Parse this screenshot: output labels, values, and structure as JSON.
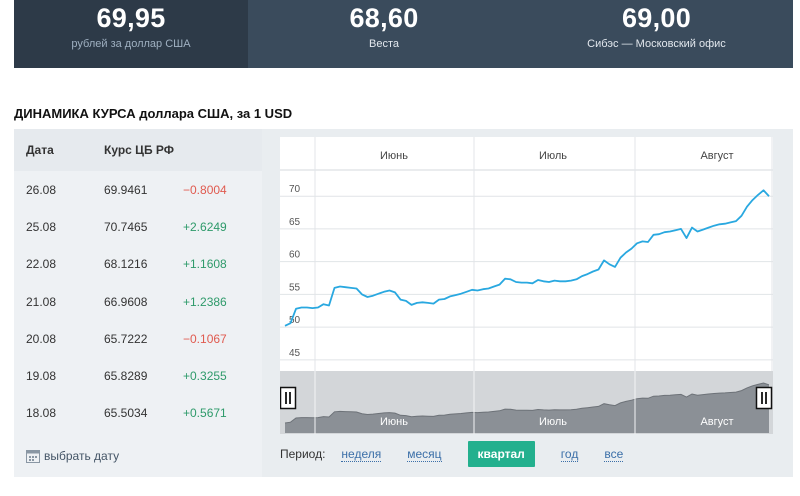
{
  "rates": [
    {
      "value": "69,95",
      "label": "рублей за доллар США"
    },
    {
      "value": "68,60",
      "label": "Веста"
    },
    {
      "value": "69,00",
      "label": "Сибэс — Московский офис"
    }
  ],
  "section_title": "ДИНАМИКА КУРСА доллара США, за 1 USD",
  "table": {
    "headers": {
      "date": "Дата",
      "rate": "Курс ЦБ РФ"
    },
    "rows": [
      {
        "date": "26.08",
        "rate": "69.9461",
        "change": "−0.8004"
      },
      {
        "date": "25.08",
        "rate": "70.7465",
        "change": "+2.6249"
      },
      {
        "date": "22.08",
        "rate": "68.1216",
        "change": "+1.1608"
      },
      {
        "date": "21.08",
        "rate": "66.9608",
        "change": "+1.2386"
      },
      {
        "date": "20.08",
        "rate": "65.7222",
        "change": "−0.1067"
      },
      {
        "date": "19.08",
        "rate": "65.8289",
        "change": "+0.3255"
      },
      {
        "date": "18.08",
        "rate": "65.5034",
        "change": "+0.5671"
      }
    ],
    "pick_date": "выбрать дату"
  },
  "period": {
    "label": "Период:",
    "options": [
      "неделя",
      "месяц",
      "квартал",
      "год",
      "все"
    ],
    "active": "квартал"
  },
  "chart_data": {
    "type": "line",
    "months": [
      "Июнь",
      "Июль",
      "Август"
    ],
    "navigator_months": [
      "Июнь",
      "Июль",
      "Август"
    ],
    "yticks": [
      45,
      50,
      55,
      60,
      65,
      70
    ],
    "ylim": [
      43.3,
      74
    ],
    "grid": true,
    "line_color": "#29a8e0",
    "series": [
      {
        "values": [
          50.2,
          50.6,
          52.8,
          53.0,
          53.0,
          52.9,
          53.0,
          53.5,
          53.3,
          56.0,
          56.2,
          56.1,
          56.0,
          55.9,
          55.0,
          54.6,
          54.8,
          55.1,
          55.4,
          55.6,
          55.3,
          54.2,
          54.0,
          53.4,
          53.7,
          53.8,
          53.7,
          53.6,
          54.2,
          54.3,
          54.7,
          54.9,
          55.1,
          55.4,
          55.7,
          55.6,
          55.8,
          55.9,
          56.2,
          56.5,
          57.4,
          57.3,
          56.9,
          56.8,
          56.8,
          56.7,
          57.2,
          57.0,
          56.9,
          57.1,
          57.0,
          57.0,
          57.1,
          57.3,
          57.8,
          58.1,
          58.5,
          58.8,
          60.2,
          59.6,
          59.2,
          60.6,
          61.4,
          62.0,
          62.8,
          63.1,
          63.0,
          64.1,
          64.2,
          64.5,
          64.6,
          64.8,
          65.0,
          63.6,
          65.2,
          64.6,
          64.9,
          65.2,
          65.5,
          65.7,
          65.8,
          66.0,
          66.2,
          67.0,
          68.4,
          69.4,
          70.2,
          70.9,
          70.0
        ]
      }
    ]
  }
}
